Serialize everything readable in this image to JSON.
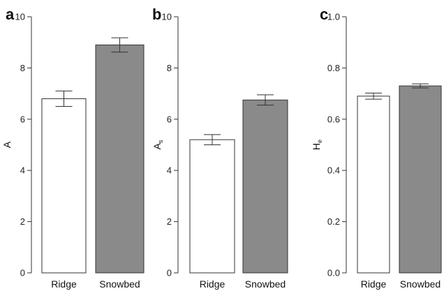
{
  "colors": {
    "ridge": "#ffffff",
    "snowbed": "#8a8a8a",
    "stroke": "#333333"
  },
  "chart_data": [
    {
      "type": "bar",
      "panel_label": "a",
      "ylabel": "A",
      "ylabel_sub": "",
      "categories": [
        "Ridge",
        "Snowbed"
      ],
      "values": [
        6.8,
        8.9
      ],
      "errors": [
        0.3,
        0.28
      ],
      "ylim": [
        0,
        10
      ],
      "yticks": [
        0,
        2,
        4,
        6,
        8,
        10
      ],
      "ytick_labels": [
        "0",
        "2",
        "4",
        "6",
        "8",
        "10"
      ]
    },
    {
      "type": "bar",
      "panel_label": "b",
      "ylabel": "A",
      "ylabel_sub": "s",
      "categories": [
        "Ridge",
        "Snowbed"
      ],
      "values": [
        5.2,
        6.75
      ],
      "errors": [
        0.2,
        0.2
      ],
      "ylim": [
        0,
        10
      ],
      "yticks": [
        0,
        2,
        4,
        6,
        8,
        10
      ],
      "ytick_labels": [
        "0",
        "2",
        "4",
        "6",
        "8",
        "10"
      ]
    },
    {
      "type": "bar",
      "panel_label": "c",
      "ylabel": "H",
      "ylabel_sub": "e",
      "categories": [
        "Ridge",
        "Snowbed"
      ],
      "values": [
        0.69,
        0.73
      ],
      "errors": [
        0.012,
        0.008
      ],
      "ylim": [
        0,
        1
      ],
      "yticks": [
        0,
        0.2,
        0.4,
        0.6,
        0.8,
        1.0
      ],
      "ytick_labels": [
        "0.0",
        "0.2",
        "0.4",
        "0.6",
        "0.8",
        "1.0"
      ]
    }
  ]
}
